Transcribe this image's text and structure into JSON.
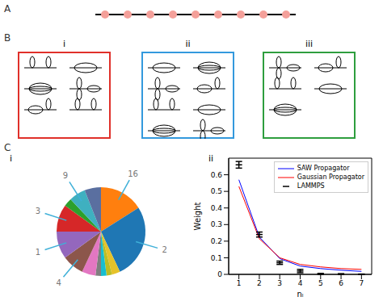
{
  "panel_labels": [
    "A",
    "B",
    "C"
  ],
  "sub_labels": {
    "B": [
      "i",
      "ii",
      "iii"
    ],
    "C": [
      "i",
      "ii"
    ]
  },
  "chart_data": [
    {
      "type": "pie",
      "categories": [
        "16",
        "2",
        null,
        null,
        null,
        null,
        null,
        "4",
        "1",
        "3",
        null,
        "9",
        null
      ],
      "values": [
        16,
        27,
        3,
        2,
        2,
        2,
        5,
        8,
        10,
        10,
        3,
        6,
        6
      ],
      "colors": [
        "#ff7f0e",
        "#1f77b4",
        "#e6c229",
        "#bcbd22",
        "#17becf",
        "#7f7f7f",
        "#e377c2",
        "#8c564b",
        "#9467bd",
        "#d62728",
        "#2ca02c",
        "#3fb0c0",
        "#5a6fa0"
      ]
    },
    {
      "type": "line",
      "xlabel": "nₗ",
      "ylabel": "Weight",
      "x": [
        1,
        2,
        3,
        4,
        5,
        6,
        7
      ],
      "xlim": [
        0.5,
        7.5
      ],
      "xticks": [
        1,
        2,
        3,
        4,
        5,
        6,
        7
      ],
      "ylim": [
        0,
        0.7
      ],
      "yticks": [
        0,
        0.1,
        0.2,
        0.3,
        0.4,
        0.5,
        0.6
      ],
      "legend": "upper right",
      "series": [
        {
          "name": "SAW Propagator",
          "color": "#0000ff",
          "values": [
            0.57,
            0.225,
            0.095,
            0.05,
            0.035,
            0.025,
            0.018
          ]
        },
        {
          "name": "Gaussian Propagator",
          "color": "#ff0000",
          "values": [
            0.53,
            0.215,
            0.1,
            0.06,
            0.045,
            0.035,
            0.03
          ]
        },
        {
          "name": "LAMMPS",
          "color": "#000000",
          "type": "scatter",
          "marker": "dash",
          "values": [
            0.66,
            0.24,
            0.07,
            0.02,
            0.003,
            0.002,
            0.001
          ],
          "errors": [
            0.02,
            0.015,
            0.01,
            0.01,
            0.003,
            0.002,
            0.001
          ]
        }
      ]
    }
  ]
}
